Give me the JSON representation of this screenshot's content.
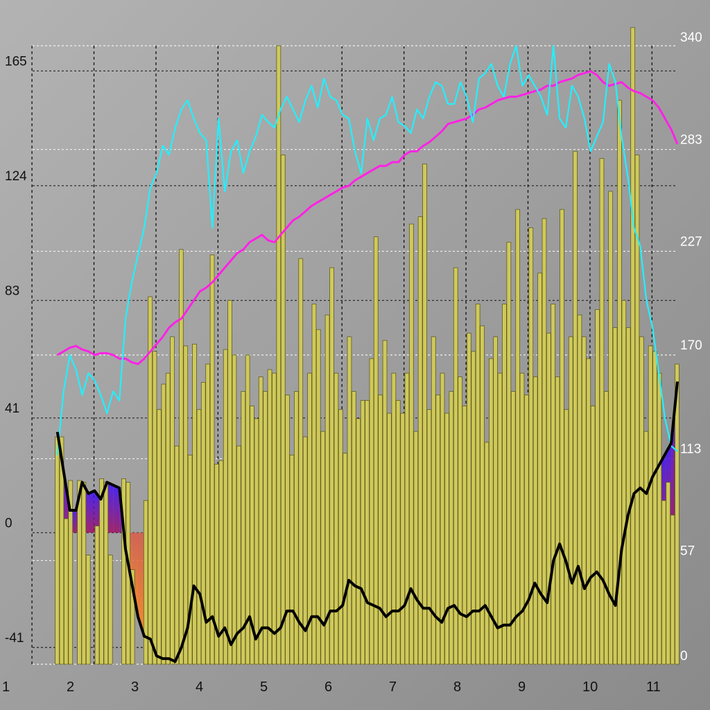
{
  "chart_data": {
    "type": "bar",
    "title": "",
    "xlabel": "",
    "ylabel": "",
    "grid": true,
    "colors": {
      "background_light": "#b4b4b4",
      "background_dark": "#8c8c8c",
      "bar_fill": "#cfc95a",
      "bar_stroke": "#5e5b24",
      "line_cyan": "#22f0ff",
      "line_magenta": "#ff22e6",
      "line_black": "#000000",
      "area_neg": "#ff7a1a",
      "area_pos": "#3a10ff"
    },
    "x_axis": {
      "range": [
        1,
        11.4
      ],
      "ticks": [
        "1",
        "2",
        "3",
        "4",
        "5",
        "6",
        "7",
        "8",
        "9",
        "10",
        "11"
      ]
    },
    "left_axis": {
      "range": [
        -47,
        174
      ],
      "ticks": [
        "-41",
        "0",
        "41",
        "83",
        "124",
        "165"
      ]
    },
    "right_axis": {
      "range": [
        0,
        340
      ],
      "ticks": [
        "0",
        "57",
        "113",
        "170",
        "227",
        "283",
        "340"
      ]
    },
    "series": [
      {
        "kind": "bar",
        "axis": "right",
        "x_start": 1.4,
        "x_step": 0.1,
        "values": [
          125,
          125,
          80,
          101,
          0,
          101,
          100,
          60,
          0,
          76,
          102,
          100,
          60,
          0,
          0,
          102,
          100,
          52,
          0,
          0,
          90,
          202,
          172,
          140,
          154,
          160,
          180,
          120,
          228,
          175,
          115,
          176,
          140,
          155,
          165,
          225,
          110,
          112,
          173,
          200,
          170,
          120,
          150,
          170,
          142,
          135,
          158,
          150,
          162,
          160,
          340,
          280,
          148,
          115,
          150,
          223,
          125,
          160,
          198,
          184,
          128,
          192,
          218,
          160,
          140,
          116,
          180,
          150,
          135,
          145,
          145,
          168,
          235,
          148,
          178,
          138,
          160,
          145,
          138,
          160,
          242,
          128,
          246,
          275,
          140,
          180,
          148,
          160,
          138,
          150,
          218,
          158,
          142,
          182,
          172,
          198,
          186,
          122,
          168,
          180,
          160,
          198,
          232,
          150,
          250,
          160,
          148,
          240,
          158,
          215,
          245,
          182,
          198,
          158,
          250,
          140,
          180,
          282,
          192,
          180,
          168,
          142,
          195,
          278,
          150,
          260,
          185,
          310,
          200,
          185,
          350,
          280,
          180,
          128,
          175,
          172,
          160,
          90,
          100,
          82,
          165
        ],
        "y_left_range_hint": [
          -47,
          174
        ]
      },
      {
        "name": "",
        "kind": "line",
        "axis": "right",
        "x": [
          1.4,
          1.5,
          1.6,
          1.7,
          1.8,
          1.9,
          2.0,
          2.1,
          2.2,
          2.3,
          2.4,
          2.5,
          2.6,
          2.7,
          2.8,
          2.9,
          3.0,
          3.1,
          3.2,
          3.3,
          3.4,
          3.5,
          3.6,
          3.7,
          3.8,
          3.9,
          4.0,
          4.1,
          4.2,
          4.3,
          4.4,
          4.5,
          4.6,
          4.7,
          4.8,
          4.9,
          5.0,
          5.1,
          5.2,
          5.3,
          5.4,
          5.5,
          5.6,
          5.7,
          5.8,
          5.9,
          6.0,
          6.1,
          6.2,
          6.3,
          6.4,
          6.5,
          6.6,
          6.7,
          6.8,
          6.9,
          7.0,
          7.1,
          7.2,
          7.3,
          7.4,
          7.5,
          7.6,
          7.7,
          7.8,
          7.9,
          8.0,
          8.1,
          8.2,
          8.3,
          8.4,
          8.5,
          8.6,
          8.7,
          8.8,
          8.9,
          9.0,
          9.1,
          9.2,
          9.3,
          9.4,
          9.5,
          9.6,
          9.7,
          9.8,
          9.9,
          10.0,
          10.1,
          10.2,
          10.3,
          10.4,
          10.5,
          10.6,
          10.7,
          10.8,
          10.9,
          11.0,
          11.1,
          11.2,
          11.3,
          11.4
        ],
        "values": [
          115,
          150,
          170,
          162,
          148,
          160,
          156,
          148,
          138,
          150,
          145,
          190,
          210,
          225,
          240,
          262,
          270,
          285,
          280,
          295,
          305,
          310,
          300,
          292,
          288,
          240,
          300,
          260,
          282,
          288,
          270,
          282,
          290,
          302,
          298,
          295,
          305,
          312,
          305,
          298,
          310,
          318,
          306,
          322,
          312,
          310,
          302,
          300,
          282,
          270,
          300,
          288,
          300,
          302,
          312,
          298,
          296,
          292,
          305,
          300,
          312,
          320,
          318,
          308,
          308,
          320,
          312,
          298,
          322,
          325,
          330,
          318,
          312,
          330,
          340,
          318,
          324,
          318,
          312,
          302,
          340,
          300,
          295,
          318,
          312,
          300,
          282,
          290,
          298,
          330,
          320,
          290,
          268,
          240,
          230,
          200,
          185,
          160,
          135,
          120,
          117
        ]
      },
      {
        "name": "",
        "kind": "line",
        "axis": "right",
        "x": [
          1.4,
          1.5,
          1.6,
          1.7,
          1.8,
          1.9,
          2.0,
          2.1,
          2.2,
          2.3,
          2.4,
          2.5,
          2.6,
          2.7,
          2.8,
          2.9,
          3.0,
          3.1,
          3.2,
          3.3,
          3.4,
          3.5,
          3.6,
          3.7,
          3.8,
          3.9,
          4.0,
          4.1,
          4.2,
          4.3,
          4.4,
          4.5,
          4.6,
          4.7,
          4.8,
          4.9,
          5.0,
          5.1,
          5.2,
          5.3,
          5.4,
          5.5,
          5.6,
          5.7,
          5.8,
          5.9,
          6.0,
          6.1,
          6.2,
          6.3,
          6.4,
          6.5,
          6.6,
          6.7,
          6.8,
          6.9,
          7.0,
          7.1,
          7.2,
          7.3,
          7.4,
          7.5,
          7.6,
          7.7,
          7.8,
          7.9,
          8.0,
          8.1,
          8.2,
          8.3,
          8.4,
          8.5,
          8.6,
          8.7,
          8.8,
          8.9,
          9.0,
          9.1,
          9.2,
          9.3,
          9.4,
          9.5,
          9.6,
          9.7,
          9.8,
          9.9,
          10.0,
          10.1,
          10.2,
          10.3,
          10.4,
          10.5,
          10.6,
          10.7,
          10.8,
          10.9,
          11.0,
          11.1,
          11.2,
          11.3,
          11.4
        ],
        "values": [
          170,
          172,
          174,
          175,
          173,
          172,
          170,
          171,
          171,
          170,
          168,
          168,
          166,
          165,
          168,
          172,
          176,
          180,
          185,
          188,
          190,
          195,
          200,
          205,
          207,
          210,
          214,
          218,
          222,
          226,
          228,
          232,
          234,
          236,
          233,
          232,
          236,
          240,
          244,
          246,
          249,
          252,
          254,
          256,
          258,
          260,
          262,
          263,
          266,
          268,
          270,
          272,
          274,
          274,
          276,
          276,
          280,
          282,
          282,
          285,
          287,
          290,
          293,
          297,
          298,
          299,
          300,
          302,
          305,
          306,
          308,
          310,
          311,
          312,
          312,
          313,
          314,
          315,
          316,
          318,
          318,
          320,
          321,
          322,
          324,
          325,
          326,
          324,
          320,
          318,
          319,
          320,
          317,
          315,
          314,
          312,
          310,
          306,
          300,
          294,
          286
        ]
      },
      {
        "name": "",
        "kind": "area-line",
        "axis": "left",
        "x": [
          1.4,
          1.5,
          1.6,
          1.7,
          1.8,
          1.9,
          2.0,
          2.1,
          2.2,
          2.3,
          2.4,
          2.5,
          2.6,
          2.7,
          2.8,
          2.9,
          3.0,
          3.1,
          3.2,
          3.3,
          3.4,
          3.5,
          3.6,
          3.7,
          3.8,
          3.9,
          4.0,
          4.1,
          4.2,
          4.3,
          4.4,
          4.5,
          4.6,
          4.7,
          4.8,
          4.9,
          5.0,
          5.1,
          5.2,
          5.3,
          5.4,
          5.5,
          5.6,
          5.7,
          5.8,
          5.9,
          6.0,
          6.1,
          6.2,
          6.3,
          6.4,
          6.5,
          6.6,
          6.7,
          6.8,
          6.9,
          7.0,
          7.1,
          7.2,
          7.3,
          7.4,
          7.5,
          7.6,
          7.7,
          7.8,
          7.9,
          8.0,
          8.1,
          8.2,
          8.3,
          8.4,
          8.5,
          8.6,
          8.7,
          8.8,
          8.9,
          9.0,
          9.1,
          9.2,
          9.3,
          9.4,
          9.5,
          9.6,
          9.7,
          9.8,
          9.9,
          10.0,
          10.1,
          10.2,
          10.3,
          10.4,
          10.5,
          10.6,
          10.7,
          10.8,
          10.9,
          11.0,
          11.1,
          11.2,
          11.3,
          11.4
        ],
        "values": [
          36,
          22,
          8,
          8,
          18,
          14,
          15,
          12,
          18,
          17,
          16,
          -6,
          -18,
          -30,
          -37,
          -38,
          -44,
          -45,
          -45,
          -46,
          -41,
          -34,
          -19,
          -22,
          -32,
          -30,
          -37,
          -34,
          -40,
          -36,
          -34,
          -30,
          -38,
          -34,
          -34,
          -36,
          -34,
          -28,
          -28,
          -32,
          -35,
          -30,
          -30,
          -33,
          -28,
          -28,
          -26,
          -17,
          -19,
          -20,
          -25,
          -26,
          -27,
          -30,
          -28,
          -28,
          -26,
          -20,
          -24,
          -27,
          -27,
          -30,
          -32,
          -27,
          -26,
          -29,
          -30,
          -28,
          -28,
          -26,
          -30,
          -34,
          -33,
          -33,
          -30,
          -28,
          -24,
          -18,
          -22,
          -25,
          -10,
          -4,
          -10,
          -18,
          -12,
          -20,
          -16,
          -14,
          -17,
          -22,
          -26,
          -6,
          6,
          14,
          16,
          14,
          20,
          24,
          28,
          32,
          54
        ]
      }
    ]
  }
}
